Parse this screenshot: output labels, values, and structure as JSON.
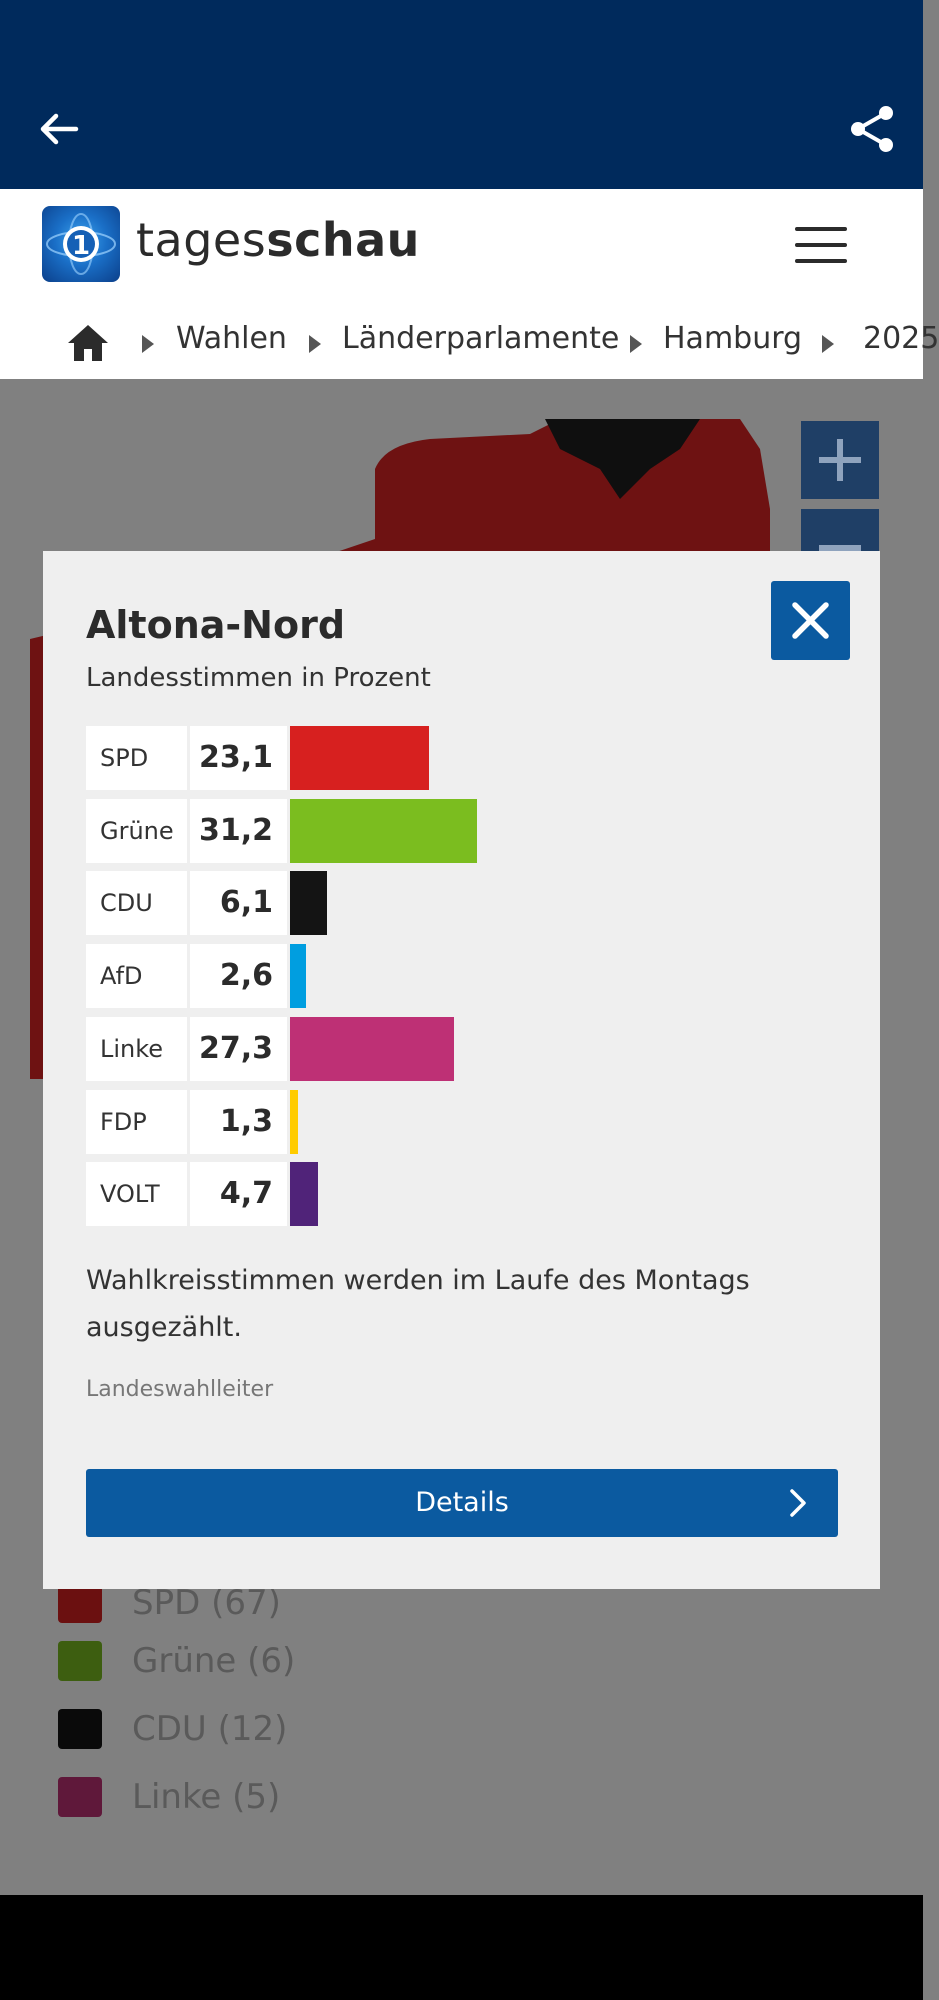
{
  "header": {
    "logo_text_light": "tages",
    "logo_text_bold": "schau",
    "breadcrumb": [
      {
        "label": "Wahlen"
      },
      {
        "label": "Länderparlamente"
      },
      {
        "label": "Hamburg"
      },
      {
        "label": "2025"
      }
    ]
  },
  "legend": [
    {
      "label": "SPD (67)",
      "color": "#d7201f"
    },
    {
      "label": "Grüne (6)",
      "color": "#7bbd1f"
    },
    {
      "label": "CDU (12)",
      "color": "#141414"
    },
    {
      "label": "Linke (5)",
      "color": "#be3075"
    }
  ],
  "modal": {
    "title": "Altona-Nord",
    "subtitle": "Landesstimmen in Prozent",
    "results": [
      {
        "party": "SPD",
        "value": "23,1",
        "percent": 23.1,
        "color": "#d7201f"
      },
      {
        "party": "Grüne",
        "value": "31,2",
        "percent": 31.2,
        "color": "#7bbd1f"
      },
      {
        "party": "CDU",
        "value": "6,1",
        "percent": 6.1,
        "color": "#141414"
      },
      {
        "party": "AfD",
        "value": "2,6",
        "percent": 2.6,
        "color": "#009ee0"
      },
      {
        "party": "Linke",
        "value": "27,3",
        "percent": 27.3,
        "color": "#be3075"
      },
      {
        "party": "FDP",
        "value": "1,3",
        "percent": 1.3,
        "color": "#ffcc00"
      },
      {
        "party": "VOLT",
        "value": "4,7",
        "percent": 4.7,
        "color": "#502379"
      }
    ],
    "note": "Wahlkreisstimmen werden im Laufe des Montags ausgezählt.",
    "source": "Landeswahlleiter",
    "details_label": "Details"
  },
  "colors": {
    "topbar": "#002a5c",
    "primary_button": "#0b5aa0"
  }
}
